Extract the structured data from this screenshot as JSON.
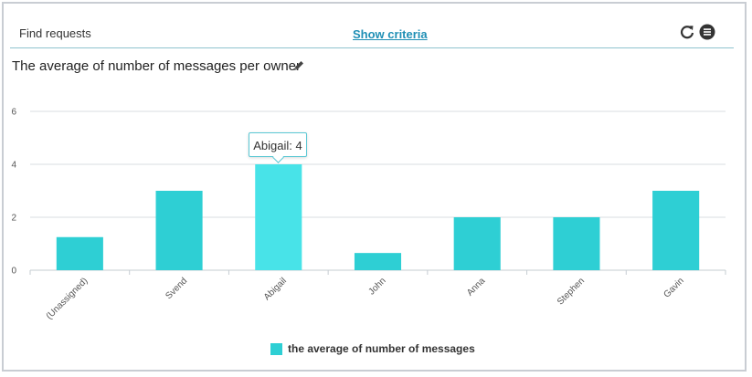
{
  "header": {
    "find_requests": "Find requests",
    "show_criteria": "Show criteria",
    "refresh_icon": "refresh-icon",
    "menu_icon": "menu-icon"
  },
  "chart_title": "The average of number of messages per owner",
  "tooltip": {
    "text": "Abigail: 4"
  },
  "colors": {
    "bar": "#2ecfd4",
    "bar_highlight": "#48e3e8",
    "grid": "#d8dde2",
    "axis": "#c6ccd2"
  },
  "chart_data": {
    "type": "bar",
    "title": "The average of number of messages per owner",
    "categories": [
      "(Unassigned)",
      "Svend",
      "Abigail",
      "John",
      "Anna",
      "Stephen",
      "Gavin"
    ],
    "series": [
      {
        "name": "the average of number of messages",
        "values": [
          1.25,
          3,
          4,
          0.65,
          2,
          2,
          3
        ]
      }
    ],
    "ylim": [
      0,
      6
    ],
    "yticks": [
      0,
      2,
      4,
      6
    ],
    "grid": true,
    "legend": "bottom",
    "highlighted_category": "Abigail"
  }
}
